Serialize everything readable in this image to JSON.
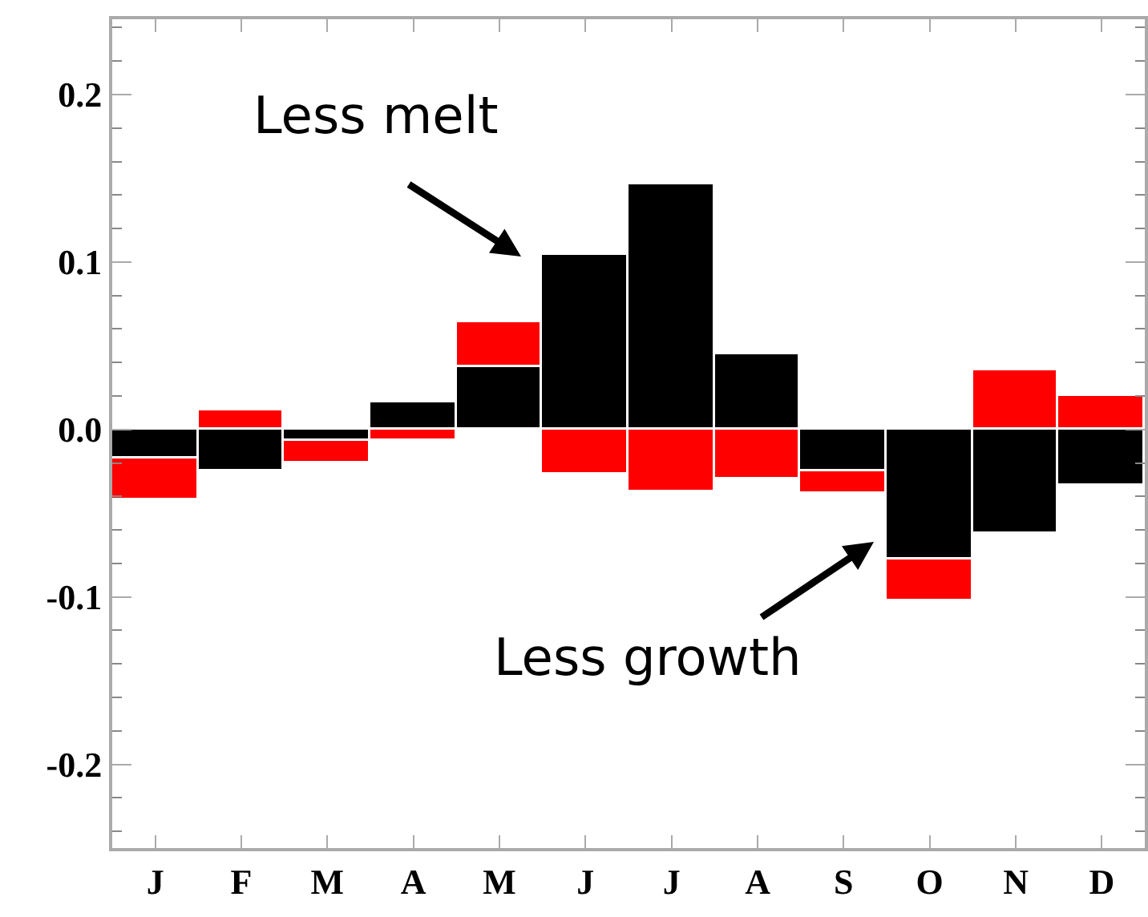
{
  "chart_data": {
    "type": "bar",
    "stacked": true,
    "categories": [
      "J",
      "F",
      "M",
      "A",
      "M",
      "J",
      "J",
      "A",
      "S",
      "O",
      "N",
      "D"
    ],
    "series": [
      {
        "color": "#000000",
        "values": [
          -0.017,
          -0.025,
          -0.007,
          0.016,
          0.037,
          0.104,
          0.146,
          0.045,
          -0.025,
          -0.078,
          -0.062,
          -0.034
        ]
      },
      {
        "color": "#ff0000",
        "values": [
          -0.025,
          0.011,
          -0.013,
          -0.007,
          0.027,
          -0.027,
          -0.037,
          -0.03,
          -0.013,
          -0.025,
          0.035,
          0.02
        ]
      }
    ],
    "ylim": [
      -0.25,
      0.245
    ],
    "yticks": [
      {
        "value": -0.2,
        "label": "-0.2"
      },
      {
        "value": -0.1,
        "label": "-0.1"
      },
      {
        "value": 0,
        "label": "0.0"
      },
      {
        "value": 0.1,
        "label": "0.1"
      },
      {
        "value": 0.2,
        "label": "0.2"
      }
    ],
    "annotations": [
      "Less melt",
      "Less growth"
    ],
    "grid": false
  }
}
